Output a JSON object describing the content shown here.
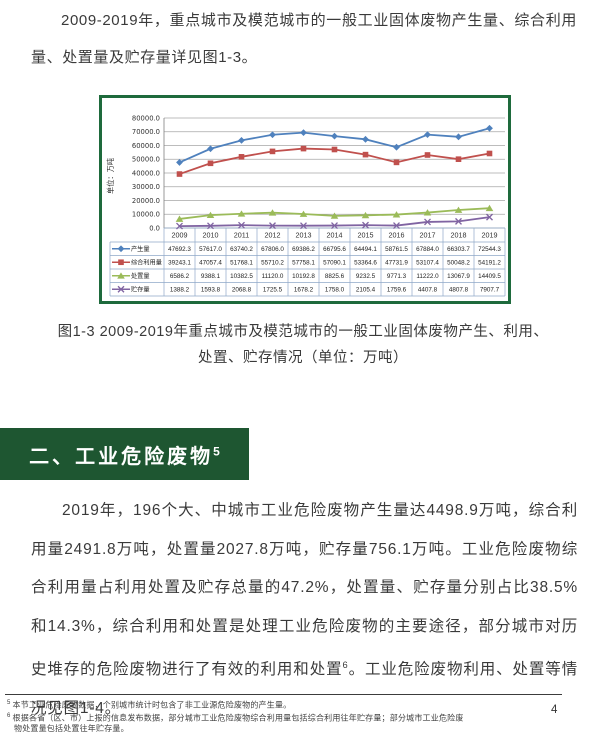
{
  "page": {
    "paragraph1": "2009-2019年，重点城市及模范城市的一般工业固体废物产生量、综合利用量、处置量及贮存量详见图1-3。",
    "figure_caption_line1": "图1-3 2009-2019年重点城市及模范城市的一般工业固体废物产生、利用、",
    "figure_caption_line2": "处置、贮存情况（单位：万吨）",
    "section_heading": {
      "text": "二、工业危险废物",
      "sup": "5"
    },
    "paragraph2": {
      "part1": "2019年，196个大、中城市工业危险废物产生量达4498.9万吨，综合利用量2491.8万吨，处置量2027.8万吨，贮存量756.1万吨。工业危险废物综合利用量占利用处置及贮存总量的47.2%，处置量、贮存量分别占比38.5%和14.3%，综合利用和处置是处理工业危险废物的主要途径，部分城市对历史堆存的危险废物进行了有效的利用和处置",
      "sup": "6",
      "part2": "。工业危险废物利用、处置等情况见图1-4。"
    },
    "footnotes": [
      {
        "marker": "5",
        "text": "本节工业危险废物数据，个别城市统计时包含了非工业源危险废物的产生量。"
      },
      {
        "marker": "6",
        "text": "根据各省（区、市）上报的信息发布数据，部分城市工业危险废物综合利用量包括综合利用往年贮存量；部分城市工业危险废物处置量包括处置往年贮存量。"
      }
    ],
    "page_number": "4"
  },
  "colors": {
    "section_header_green": "#1e5631",
    "chart_frame_green": "#1e6a3c",
    "body_text": "#3a3a3a",
    "table_grid": "#8fa8c8",
    "gridline": "#a6a6a6"
  },
  "chart_data": {
    "type": "line",
    "title": "",
    "xlabel": "",
    "ylabel": "单位：万吨",
    "ylim": [
      0,
      80000
    ],
    "ytick_step": 10000,
    "grid": "horizontal",
    "legend_position": "data-table-left",
    "data_table": true,
    "categories": [
      "2009",
      "2010",
      "2011",
      "2012",
      "2013",
      "2014",
      "2015",
      "2016",
      "2017",
      "2018",
      "2019"
    ],
    "series": [
      {
        "name": "产生量",
        "color": "#4f81bd",
        "marker": "diamond",
        "values": [
          47692.3,
          57617.0,
          63740.2,
          67806.0,
          69386.2,
          66795.6,
          64494.1,
          58761.5,
          67884.0,
          66303.7,
          72544.3
        ]
      },
      {
        "name": "综合利用量",
        "color": "#c0504d",
        "marker": "square",
        "values": [
          39243.1,
          47057.4,
          51768.1,
          55710.2,
          57758.1,
          57090.1,
          53364.6,
          47731.9,
          53107.4,
          50048.2,
          54191.2
        ]
      },
      {
        "name": "处置量",
        "color": "#9bbb59",
        "marker": "triangle",
        "values": [
          6586.2,
          9388.1,
          10382.5,
          11120.0,
          10192.8,
          8825.6,
          9232.5,
          9771.3,
          11222.0,
          13067.9,
          14409.5
        ]
      },
      {
        "name": "贮存量",
        "color": "#8064a2",
        "marker": "x",
        "values": [
          1388.2,
          1593.8,
          2068.8,
          1725.5,
          1678.2,
          1758.0,
          2105.4,
          1759.6,
          4407.8,
          4807.8,
          7907.7
        ]
      }
    ]
  }
}
